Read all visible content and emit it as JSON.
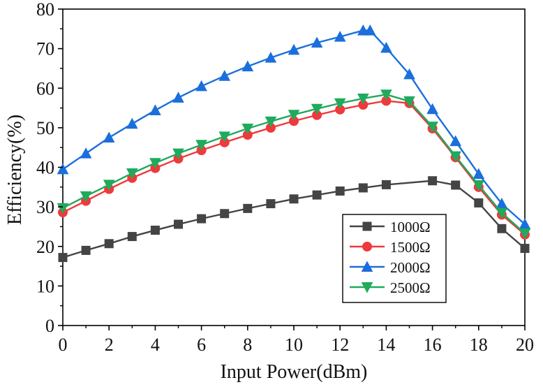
{
  "chart_data": {
    "type": "line",
    "title": "",
    "xlabel": "Input Power(dBm)",
    "ylabel": "Efficiency(%)",
    "xlim": [
      0,
      20
    ],
    "ylim": [
      0,
      80
    ],
    "xticks": [
      0,
      2,
      4,
      6,
      8,
      10,
      12,
      14,
      16,
      18,
      20
    ],
    "yticks": [
      0,
      10,
      20,
      30,
      40,
      50,
      60,
      70,
      80
    ],
    "grid": false,
    "legend_position": "bottom-right",
    "x": [
      0,
      1,
      2,
      3,
      4,
      5,
      6,
      7,
      8,
      9,
      10,
      11,
      12,
      13,
      14,
      15,
      16,
      17,
      18,
      19,
      20
    ],
    "series": [
      {
        "name": "1000Ω",
        "color": "#444444",
        "marker": "square",
        "x": [
          0,
          1,
          2,
          3,
          4,
          5,
          6,
          7,
          8,
          9,
          10,
          11,
          12,
          13,
          14,
          16,
          17,
          18,
          19,
          20
        ],
        "values": [
          17.2,
          19.0,
          20.7,
          22.5,
          24.1,
          25.6,
          27.0,
          28.3,
          29.6,
          30.8,
          32.0,
          33.0,
          34.0,
          34.8,
          35.6,
          36.6,
          35.5,
          31.0,
          24.5,
          19.5
        ]
      },
      {
        "name": "1500Ω",
        "color": "#f0393b",
        "marker": "circle",
        "x": [
          0,
          1,
          2,
          3,
          4,
          5,
          6,
          7,
          8,
          9,
          10,
          11,
          12,
          13,
          14,
          15,
          16,
          17,
          18,
          19,
          20
        ],
        "values": [
          28.6,
          31.5,
          34.5,
          37.3,
          39.8,
          42.2,
          44.3,
          46.3,
          48.2,
          50.0,
          51.7,
          53.2,
          54.6,
          55.8,
          56.8,
          56.2,
          49.8,
          42.5,
          35.0,
          28.0,
          23.0
        ]
      },
      {
        "name": "2000Ω",
        "color": "#1a6fdc",
        "marker": "triangle-up",
        "x": [
          0,
          1,
          2,
          3,
          4,
          5,
          6,
          7,
          8,
          9,
          10,
          11,
          12,
          13,
          13.3,
          14,
          15,
          16,
          17,
          18,
          19,
          20
        ],
        "values": [
          39.5,
          43.5,
          47.5,
          51.0,
          54.4,
          57.6,
          60.5,
          63.1,
          65.5,
          67.7,
          69.7,
          71.5,
          73.0,
          74.6,
          74.6,
          70.2,
          63.5,
          54.7,
          46.6,
          38.3,
          30.8,
          25.6
        ]
      },
      {
        "name": "2500Ω",
        "color": "#1faa5c",
        "marker": "triangle-down",
        "x": [
          0,
          1,
          2,
          3,
          4,
          5,
          6,
          7,
          8,
          9,
          10,
          11,
          12,
          13,
          14,
          15,
          16,
          17,
          18,
          19,
          20
        ],
        "values": [
          29.7,
          32.7,
          35.6,
          38.5,
          41.1,
          43.5,
          45.7,
          47.8,
          49.8,
          51.6,
          53.3,
          54.8,
          56.2,
          57.4,
          58.4,
          56.7,
          50.3,
          42.8,
          35.5,
          28.5,
          23.3
        ]
      }
    ]
  }
}
